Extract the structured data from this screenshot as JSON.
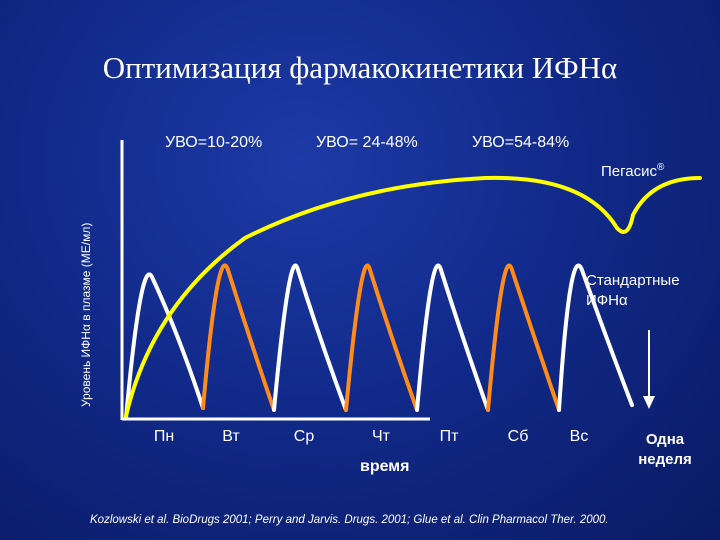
{
  "title": "Оптимизация фармакокинетики ИФНα",
  "y_axis_label": "Уровень ИФНα в плазме (МЕ/мл)",
  "x_axis_label": "время",
  "captions": [
    "УВО=10-20%",
    "УВО= 24-48%",
    "УВО=54-84%"
  ],
  "days": [
    "Пн",
    "Вт",
    "Ср",
    "Чт",
    "Пт",
    "Сб",
    "Вс"
  ],
  "pegasys_label": "Пегасис",
  "pegasys_mark": "®",
  "standard_label_line1": "Стандартные",
  "standard_label_line2": "ИФНα",
  "week_label_line1": "Одна",
  "week_label_line2": "неделя",
  "citation": "Kozlowski et al. BioDrugs 2001; Perry and Jarvis. Drugs. 2001; Glue et al. Clin Pharmacol Ther. 2000.",
  "colors": {
    "background": "#112a8a",
    "pegasys_curve": "#ffff00",
    "standard_curve_white": "#ffffff",
    "standard_curve_orange": "#ff8c1a",
    "axis": "#ffffff"
  }
}
